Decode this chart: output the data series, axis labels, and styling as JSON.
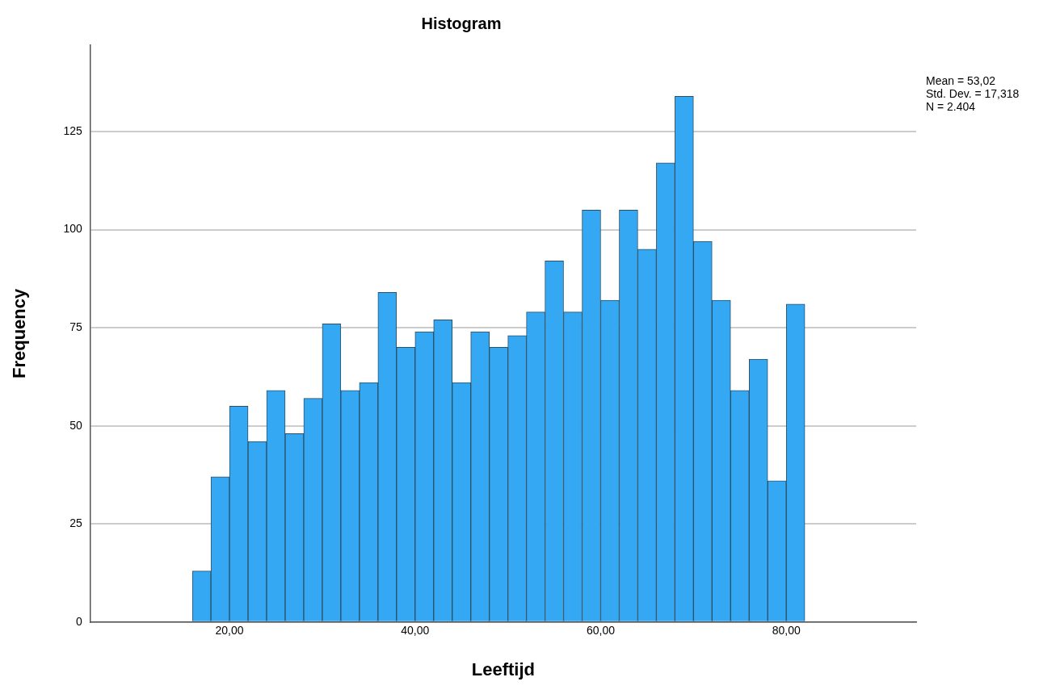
{
  "chart_data": {
    "type": "histogram",
    "title": "Histogram",
    "xlabel": "Leeftijd",
    "ylabel": "Frequency",
    "bins": [
      16,
      18,
      20,
      22,
      24,
      26,
      28,
      30,
      32,
      34,
      36,
      38,
      40,
      42,
      44,
      46,
      48,
      50,
      52,
      54,
      56,
      58,
      60,
      62,
      64,
      66,
      68,
      70,
      72,
      74,
      76,
      78,
      80,
      82
    ],
    "values": [
      13,
      37,
      55,
      46,
      59,
      48,
      57,
      76,
      59,
      61,
      84,
      70,
      74,
      77,
      61,
      74,
      70,
      73,
      79,
      92,
      79,
      105,
      82,
      105,
      95,
      117,
      134,
      97,
      82,
      59,
      67,
      36,
      81
    ],
    "color": "#35a8f4",
    "xlim": [
      5,
      94
    ],
    "xticks": [
      {
        "value": 20,
        "label": "20,00"
      },
      {
        "value": 40,
        "label": "40,00"
      },
      {
        "value": 60,
        "label": "60,00"
      },
      {
        "value": 80,
        "label": "80,00"
      }
    ],
    "ylim": [
      0,
      147
    ],
    "yticks": [
      0,
      25,
      50,
      75,
      100,
      125
    ],
    "grid": "y",
    "legend": false,
    "annotations": [
      "Mean = 53,02",
      "Std. Dev. = 17,318",
      "N = 2.404"
    ]
  }
}
